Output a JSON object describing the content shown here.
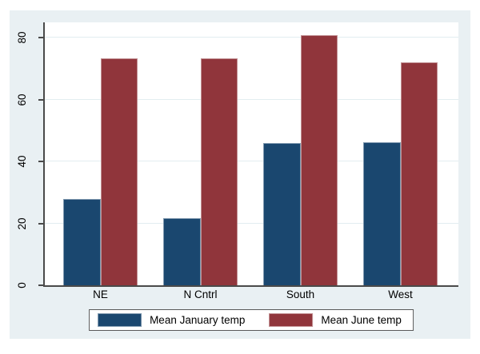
{
  "figure": {
    "background_color": "#e9f0f3",
    "plot_background": "#ffffff",
    "axis_color": "#4a4a4a",
    "gridline_color": "#e2edf0",
    "text_color": "#000000"
  },
  "chart_data": {
    "type": "bar",
    "title": "",
    "xlabel": "",
    "ylabel": "",
    "categories": [
      "NE",
      "N Cntrl",
      "South",
      "West"
    ],
    "series": [
      {
        "name": "Mean January temp",
        "color": "#1a476f",
        "values": [
          27.9,
          21.7,
          46.1,
          46.2
        ]
      },
      {
        "name": "Mean June temp",
        "color": "#90353b",
        "values": [
          73.4,
          73.5,
          80.9,
          72.1
        ]
      }
    ],
    "yticks": [
      0,
      20,
      40,
      60,
      80
    ],
    "ylim": [
      0,
      85
    ],
    "grid": true,
    "legend_position": "bottom"
  }
}
